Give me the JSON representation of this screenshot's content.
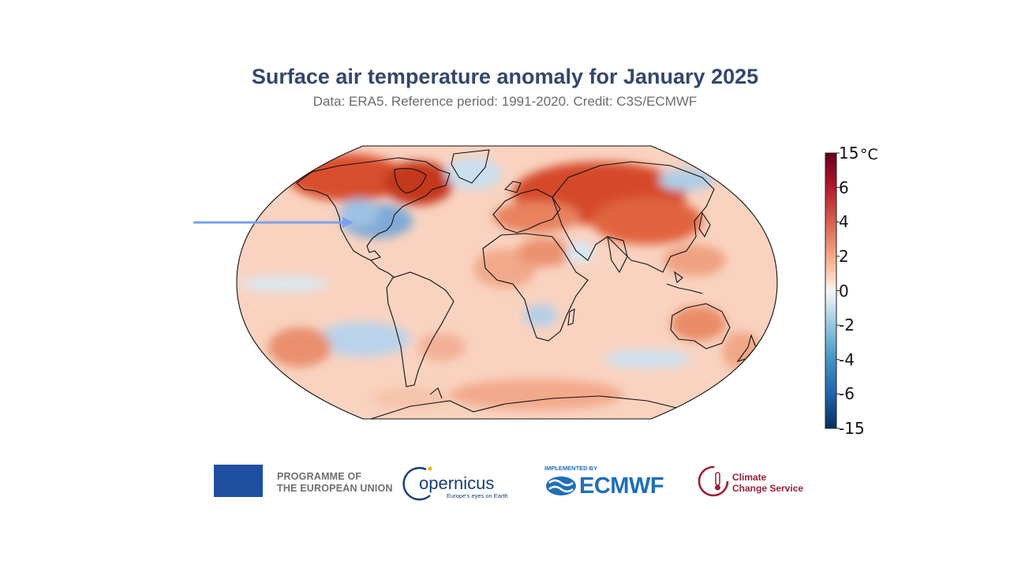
{
  "title": "Surface air temperature anomaly for January 2025",
  "subtitle": "Data: ERA5.  Reference period: 1991-2020.  Credit: C3S/ECMWF",
  "colorbar": {
    "unit": "°C",
    "labels": [
      "15",
      "6",
      "4",
      "2",
      "0",
      "-2",
      "-4",
      "-6",
      "-15"
    ],
    "colors": [
      "#67001f",
      "#b2182b",
      "#d6604d",
      "#f4a582",
      "#fddbc7",
      "#f7f7f7",
      "#d1e5f0",
      "#92c5de",
      "#4393c3",
      "#2166ac",
      "#053061"
    ]
  },
  "annotation": {
    "arrow_color": "#7aa0f0",
    "target": "eastern United States (cold anomaly)"
  },
  "logos": {
    "eu": "PROGRAMME OF\nTHE EUROPEAN UNION",
    "eu_line1": "PROGRAMME OF",
    "eu_line2": "THE EUROPEAN UNION",
    "copernicus": "opernicus",
    "copernicus_tag": "Europe's eyes on Earth",
    "ecmwf_implemented": "IMPLEMENTED BY",
    "ecmwf": "ECMWF",
    "ccs_line1": "Climate",
    "ccs_line2": "Change Service"
  }
}
